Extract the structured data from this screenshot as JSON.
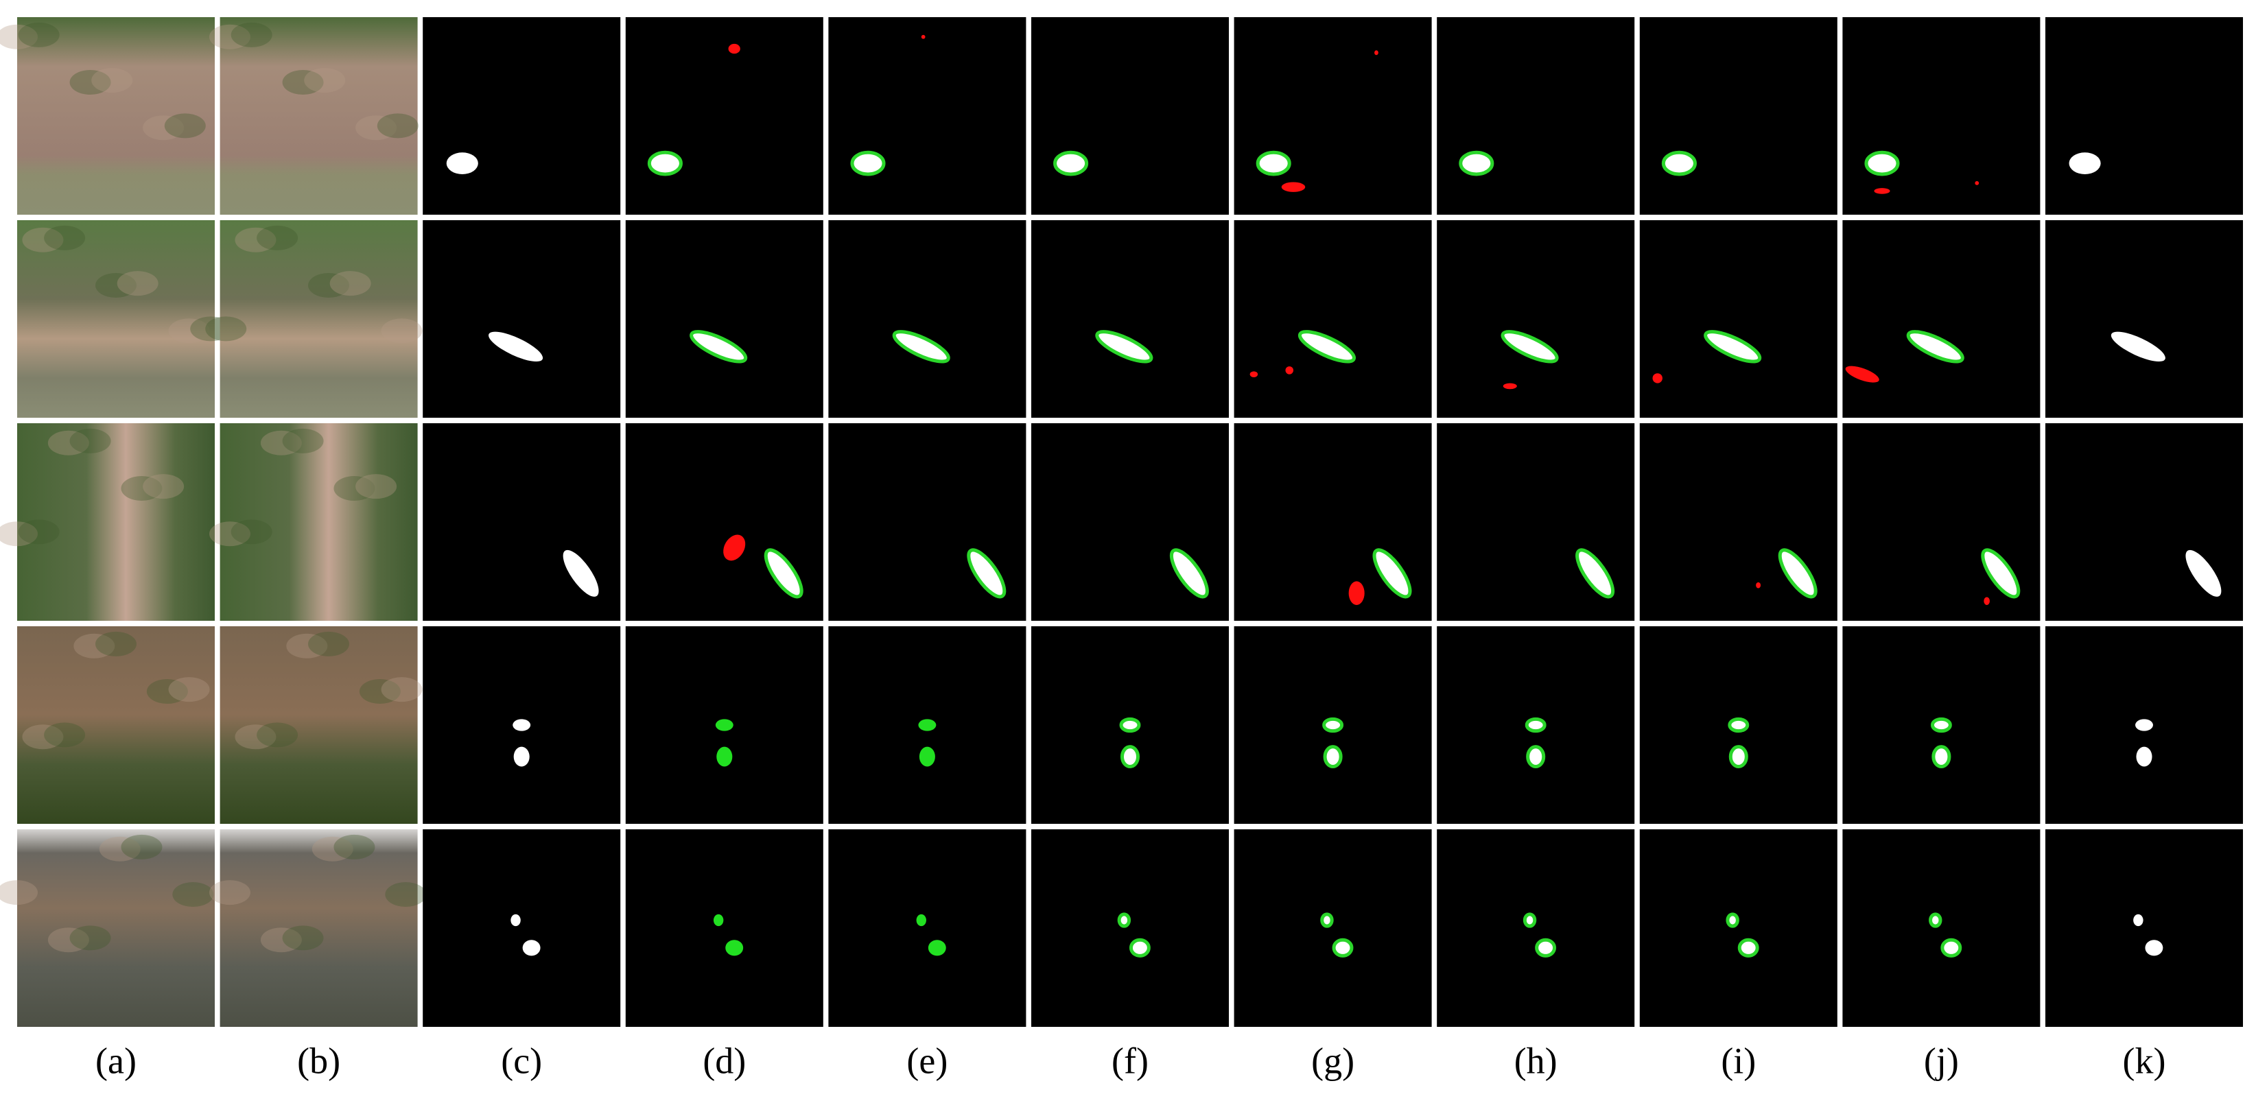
{
  "figure": {
    "panel_labels": [
      "(a)",
      "(b)",
      "(c)",
      "(d)",
      "(e)",
      "(f)",
      "(g)",
      "(h)",
      "(i)",
      "(j)",
      "(k)"
    ]
  }
}
